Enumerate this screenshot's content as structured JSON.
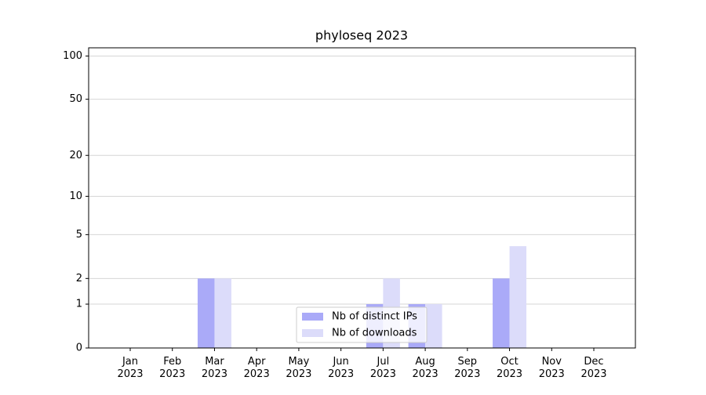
{
  "chart_data": {
    "type": "bar",
    "title": "phyloseq 2023",
    "yscale": "log1p",
    "categories": [
      "Jan 2023",
      "Feb 2023",
      "Mar 2023",
      "Apr 2023",
      "May 2023",
      "Jun 2023",
      "Jul 2023",
      "Aug 2023",
      "Sep 2023",
      "Oct 2023",
      "Nov 2023",
      "Dec 2023"
    ],
    "series": [
      {
        "name": "Nb of distinct IPs",
        "color": "#aaaaf8",
        "values": [
          0,
          0,
          2,
          0,
          0,
          0,
          1,
          1,
          0,
          2,
          0,
          0
        ]
      },
      {
        "name": "Nb of downloads",
        "color": "#dcdcfa",
        "values": [
          0,
          0,
          2,
          0,
          0,
          0,
          2,
          1,
          0,
          4,
          0,
          0
        ]
      }
    ],
    "ylim": [
      0,
      114
    ],
    "yticks": [
      0,
      1,
      2,
      5,
      10,
      20,
      50,
      100
    ],
    "grid": true,
    "legend": "lower center"
  }
}
